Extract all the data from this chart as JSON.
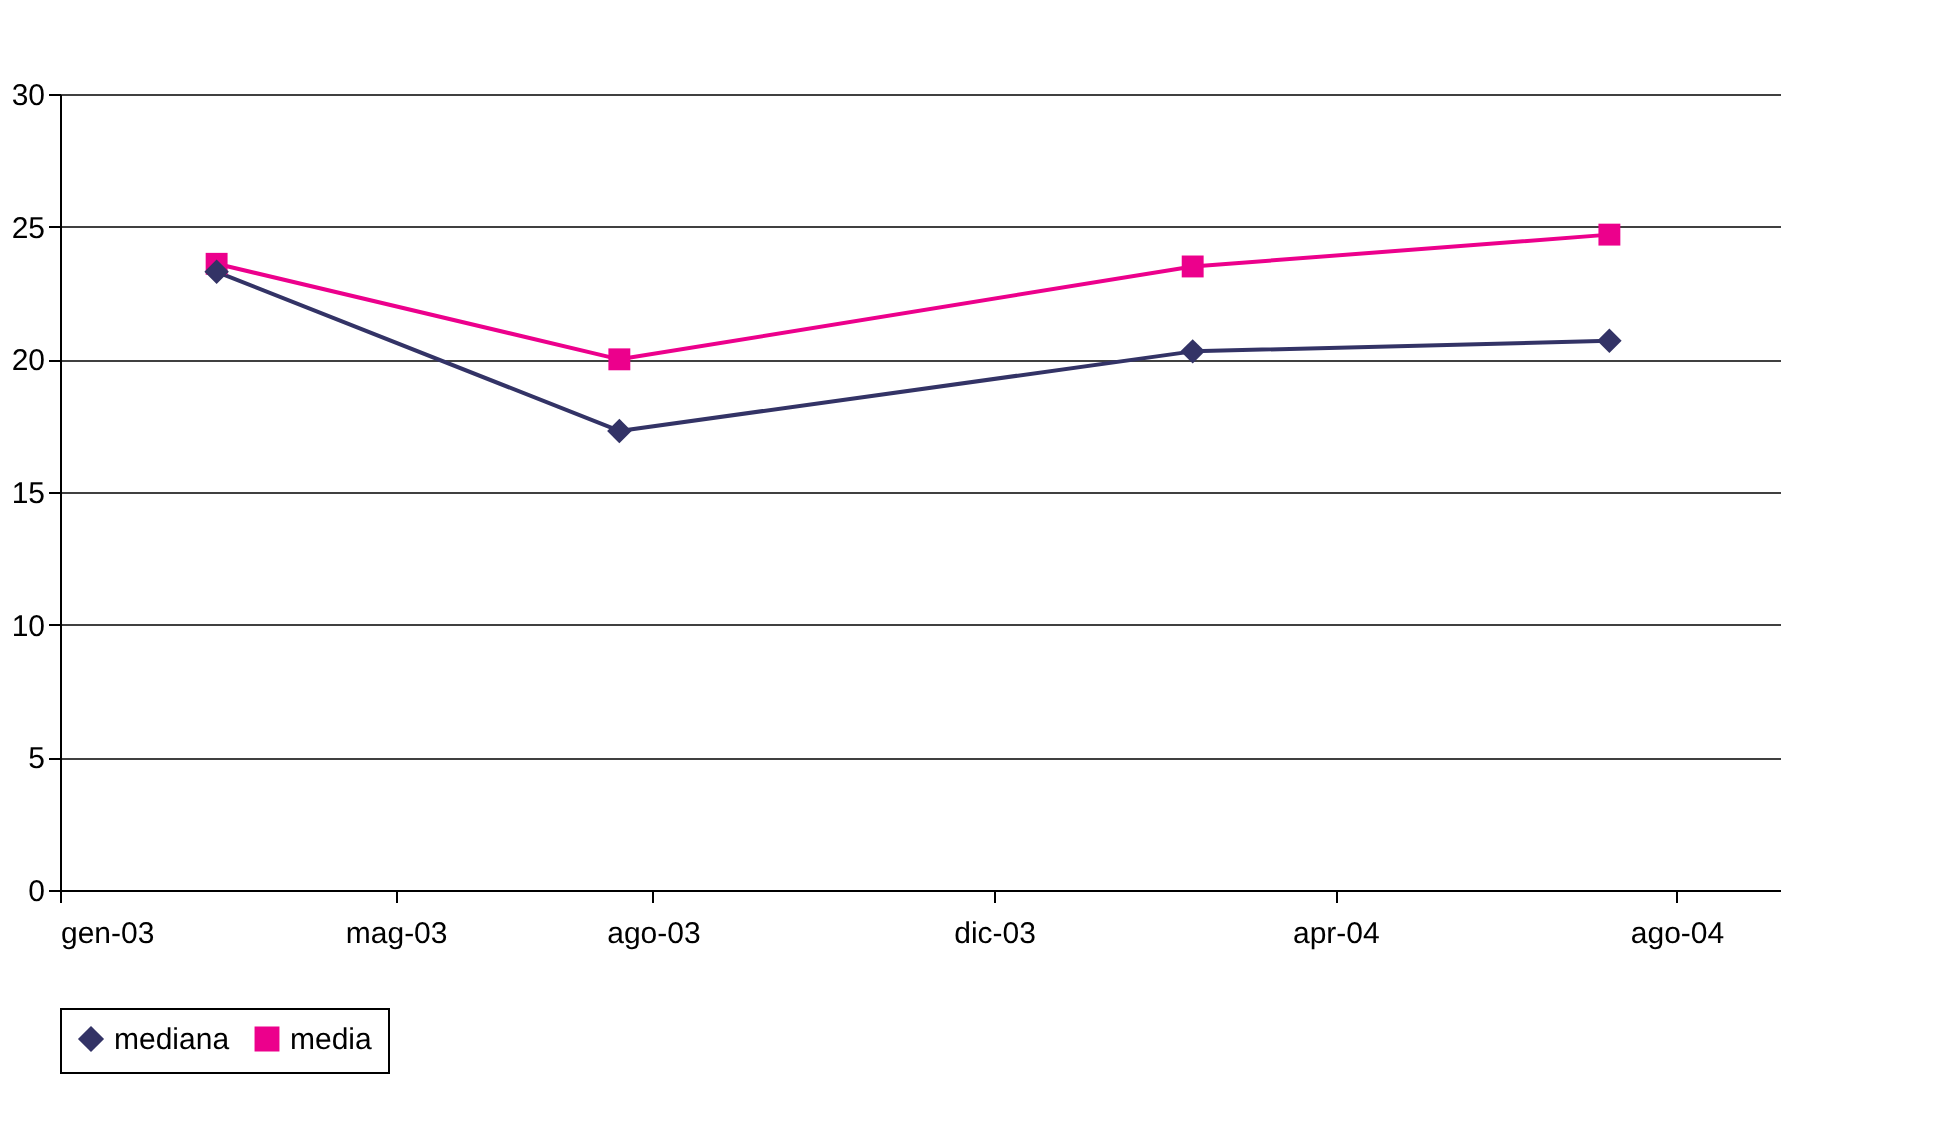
{
  "chart_data": {
    "type": "line",
    "x": [
      "2003-02-26",
      "2003-07-20",
      "2004-02-10",
      "2004-07-08"
    ],
    "series": [
      {
        "name": "mediana",
        "color": "#333366",
        "marker": "diamond",
        "values": [
          23.3,
          17.3,
          20.3,
          20.7
        ]
      },
      {
        "name": "media",
        "color": "#ec008c",
        "marker": "square",
        "values": [
          23.6,
          20.0,
          23.5,
          24.7
        ]
      }
    ],
    "xlim": [
      "2003-01-01",
      "2004-09-07"
    ],
    "xticks": [
      {
        "value": "2003-01-01",
        "label": "gen-03"
      },
      {
        "value": "2003-05-01",
        "label": "mag-03"
      },
      {
        "value": "2003-08-01",
        "label": "ago-03"
      },
      {
        "value": "2003-12-01",
        "label": "dic-03"
      },
      {
        "value": "2004-04-01",
        "label": "apr-04"
      },
      {
        "value": "2004-08-01",
        "label": "ago-04"
      }
    ],
    "ylim": [
      0,
      30
    ],
    "yticks": [
      0,
      5,
      10,
      15,
      20,
      25,
      30
    ],
    "grid": "y",
    "legend": "bottom",
    "line_style": "solid"
  }
}
